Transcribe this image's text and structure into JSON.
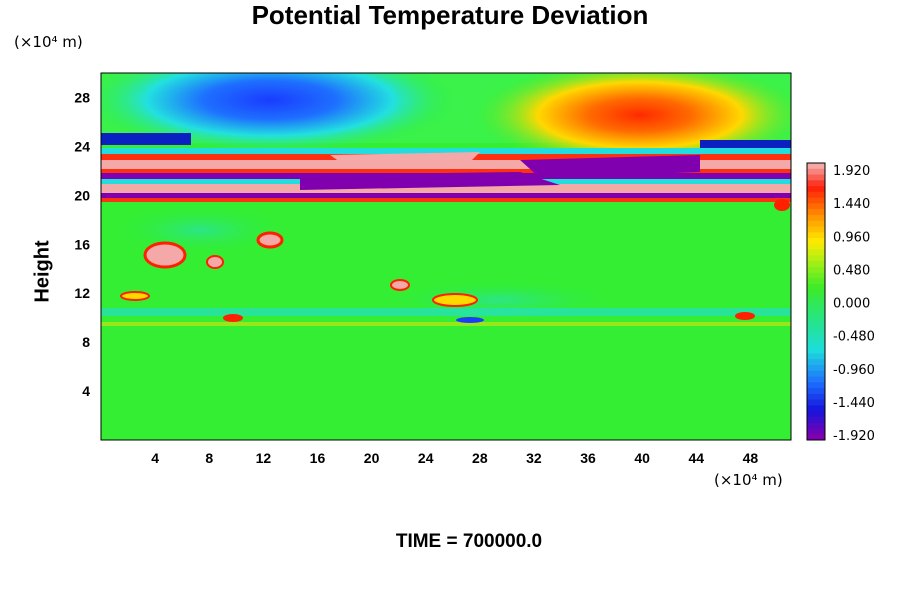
{
  "chart_data": {
    "type": "heatmap",
    "title": "Potential Temperature Deviation",
    "ylabel": "Height",
    "y_unit": "(×10⁴ m)",
    "x_unit": "(×10⁴ m)",
    "footer": "TIME = 700000.0",
    "x_ticks": [
      "4",
      "8",
      "12",
      "16",
      "20",
      "24",
      "28",
      "32",
      "36",
      "40",
      "44",
      "48"
    ],
    "y_ticks": [
      "4",
      "8",
      "12",
      "16",
      "20",
      "24",
      "28"
    ],
    "xlim": [
      0,
      51
    ],
    "ylim": [
      0,
      30
    ],
    "colorbar": {
      "labels": [
        "1.920",
        "1.440",
        "0.960",
        "0.480",
        "0.000",
        "-0.480",
        "-0.960",
        "-1.440",
        "-1.920"
      ],
      "range": [
        -1.92,
        1.92
      ]
    },
    "colors": {
      "background_field": "#33ee33",
      "max": "#f4a8a8",
      "min": "#8000b0"
    }
  }
}
